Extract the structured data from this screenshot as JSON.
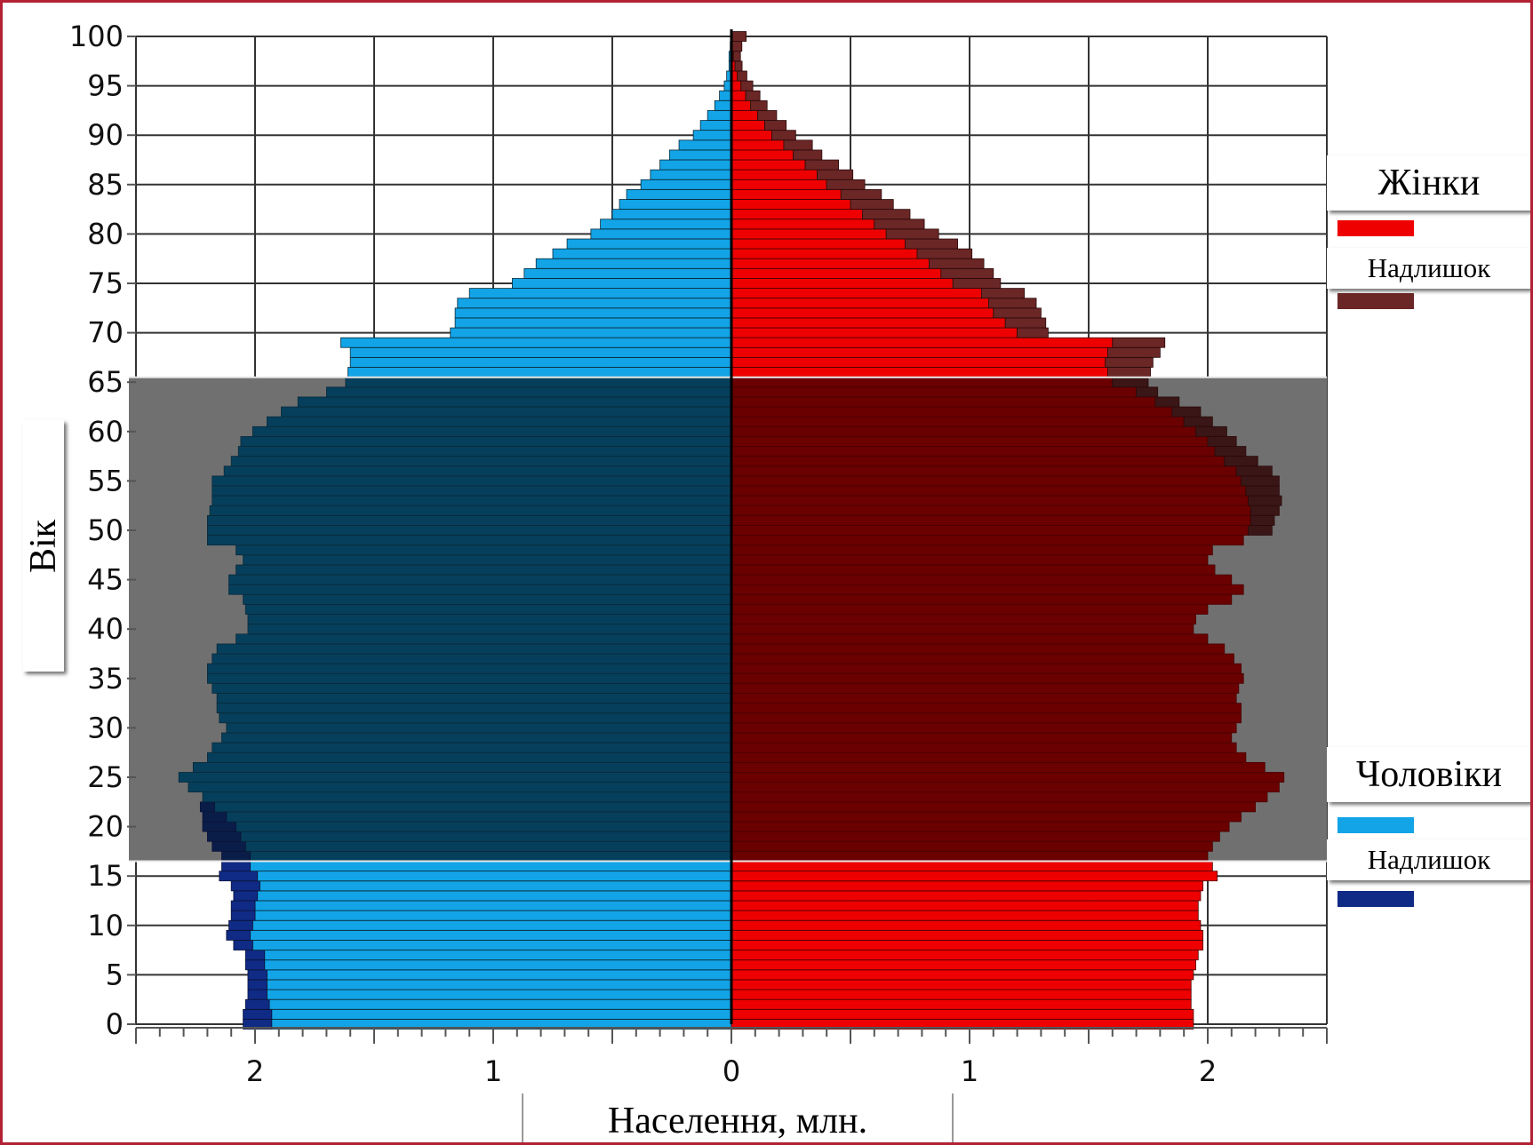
{
  "chart_data": {
    "type": "bar",
    "orientation": "horizontal",
    "subtype": "population-pyramid",
    "xlabel": "Населення, млн.",
    "ylabel": "Вік",
    "xlim": [
      -2.5,
      2.5
    ],
    "ylim": [
      0,
      100
    ],
    "x_ticks": [
      -2,
      -1,
      0,
      1,
      2
    ],
    "x_tick_labels": [
      "2",
      "1",
      "0",
      "1",
      "2"
    ],
    "y_ticks": [
      0,
      5,
      10,
      15,
      20,
      25,
      30,
      35,
      40,
      45,
      50,
      55,
      60,
      65,
      70,
      75,
      80,
      85,
      90,
      95,
      100
    ],
    "y_tick_labels": [
      "0",
      "5",
      "10",
      "15",
      "20",
      "25",
      "30",
      "35",
      "40",
      "45",
      "50",
      "55",
      "60",
      "65",
      "70",
      "75",
      "80",
      "85",
      "90",
      "95",
      "100"
    ],
    "grid": true,
    "highlight_band": {
      "from_age": 17,
      "to_age": 65
    },
    "ages": [
      0,
      1,
      2,
      3,
      4,
      5,
      6,
      7,
      8,
      9,
      10,
      11,
      12,
      13,
      14,
      15,
      16,
      17,
      18,
      19,
      20,
      21,
      22,
      23,
      24,
      25,
      26,
      27,
      28,
      29,
      30,
      31,
      32,
      33,
      34,
      35,
      36,
      37,
      38,
      39,
      40,
      41,
      42,
      43,
      44,
      45,
      46,
      47,
      48,
      49,
      50,
      51,
      52,
      53,
      54,
      55,
      56,
      57,
      58,
      59,
      60,
      61,
      62,
      63,
      64,
      65,
      66,
      67,
      68,
      69,
      70,
      71,
      72,
      73,
      74,
      75,
      76,
      77,
      78,
      79,
      80,
      81,
      82,
      83,
      84,
      85,
      86,
      87,
      88,
      89,
      90,
      91,
      92,
      93,
      94,
      95,
      96,
      97,
      98,
      99,
      100
    ],
    "series": [
      {
        "name": "Чоловіки",
        "side": "left",
        "values": [
          1.93,
          1.93,
          1.94,
          1.95,
          1.95,
          1.95,
          1.96,
          1.96,
          2.01,
          2.02,
          2.01,
          2.0,
          2.0,
          1.99,
          1.98,
          1.99,
          2.02,
          2.02,
          2.04,
          2.06,
          2.08,
          2.12,
          2.17,
          2.22,
          2.28,
          2.32,
          2.26,
          2.2,
          2.18,
          2.14,
          2.12,
          2.15,
          2.16,
          2.16,
          2.18,
          2.2,
          2.2,
          2.18,
          2.16,
          2.08,
          2.03,
          2.03,
          2.04,
          2.05,
          2.11,
          2.11,
          2.08,
          2.05,
          2.08,
          2.2,
          2.2,
          2.2,
          2.19,
          2.18,
          2.18,
          2.18,
          2.13,
          2.1,
          2.07,
          2.06,
          2.01,
          1.95,
          1.89,
          1.82,
          1.7,
          1.62,
          1.61,
          1.6,
          1.6,
          1.64,
          1.18,
          1.16,
          1.16,
          1.15,
          1.1,
          0.92,
          0.87,
          0.82,
          0.75,
          0.69,
          0.59,
          0.55,
          0.5,
          0.47,
          0.44,
          0.38,
          0.34,
          0.3,
          0.26,
          0.22,
          0.16,
          0.13,
          0.1,
          0.07,
          0.05,
          0.03,
          0.02,
          0.01,
          0.01,
          0.005,
          0.002
        ]
      },
      {
        "name": "Надлишок",
        "side": "left",
        "values": [
          0.12,
          0.12,
          0.1,
          0.08,
          0.08,
          0.08,
          0.08,
          0.08,
          0.08,
          0.1,
          0.1,
          0.1,
          0.1,
          0.1,
          0.12,
          0.16,
          0.12,
          0.12,
          0.14,
          0.14,
          0.14,
          0.1,
          0.06,
          0.0,
          0.0,
          0.0,
          0.0,
          0.0,
          0.0,
          0.0,
          0.0,
          0.0,
          0.0,
          0.0,
          0.0,
          0.0,
          0.0,
          0.0,
          0.0,
          0.0,
          0.0,
          0.0,
          0.0,
          0.0,
          0.0,
          0.0,
          0.0,
          0.0,
          0.0,
          0.0,
          0.0,
          0.0,
          0.0,
          0.0,
          0.0,
          0.0,
          0.0,
          0.0,
          0.0,
          0.0,
          0.0,
          0.0,
          0.0,
          0.0,
          0.0,
          0.0,
          0.0,
          0.0,
          0.0,
          0.0,
          0.0,
          0.0,
          0.0,
          0.0,
          0.0,
          0.0,
          0.0,
          0.0,
          0.0,
          0.0,
          0.0,
          0.0,
          0.0,
          0.0,
          0.0,
          0.0,
          0.0,
          0.0,
          0.0,
          0.0,
          0.0,
          0.0,
          0.0,
          0.0,
          0.0,
          0.0,
          0.0,
          0.0,
          0.0,
          0.0,
          0.0
        ]
      },
      {
        "name": "Жінки",
        "side": "right",
        "values": [
          1.94,
          1.94,
          1.93,
          1.93,
          1.93,
          1.94,
          1.95,
          1.96,
          1.98,
          1.98,
          1.97,
          1.96,
          1.96,
          1.97,
          1.98,
          2.04,
          2.02,
          2.0,
          2.02,
          2.05,
          2.09,
          2.14,
          2.2,
          2.25,
          2.3,
          2.32,
          2.24,
          2.16,
          2.12,
          2.1,
          2.12,
          2.14,
          2.14,
          2.12,
          2.13,
          2.15,
          2.14,
          2.11,
          2.07,
          2.0,
          1.94,
          1.95,
          2.0,
          2.1,
          2.15,
          2.1,
          2.03,
          2.0,
          2.02,
          2.15,
          2.17,
          2.18,
          2.18,
          2.17,
          2.16,
          2.14,
          2.12,
          2.07,
          2.03,
          2.0,
          1.95,
          1.9,
          1.85,
          1.78,
          1.7,
          1.6,
          1.58,
          1.57,
          1.58,
          1.6,
          1.2,
          1.15,
          1.1,
          1.08,
          1.05,
          0.93,
          0.88,
          0.83,
          0.78,
          0.73,
          0.65,
          0.6,
          0.55,
          0.5,
          0.46,
          0.4,
          0.36,
          0.31,
          0.26,
          0.22,
          0.17,
          0.14,
          0.11,
          0.08,
          0.06,
          0.04,
          0.025,
          0.015,
          0.008,
          0.004,
          0.002
        ]
      },
      {
        "name": "Надлишок",
        "side": "right",
        "values": [
          0,
          0,
          0,
          0,
          0,
          0,
          0,
          0,
          0,
          0,
          0,
          0,
          0,
          0,
          0,
          0,
          0,
          0,
          0,
          0,
          0,
          0,
          0,
          0,
          0,
          0,
          0,
          0,
          0,
          0,
          0,
          0,
          0,
          0,
          0,
          0,
          0,
          0,
          0,
          0,
          0,
          0,
          0,
          0,
          0,
          0,
          0,
          0,
          0,
          0,
          0.1,
          0.1,
          0.12,
          0.14,
          0.14,
          0.16,
          0.15,
          0.14,
          0.13,
          0.12,
          0.13,
          0.12,
          0.12,
          0.1,
          0.09,
          0.15,
          0.18,
          0.2,
          0.22,
          0.22,
          0.13,
          0.17,
          0.2,
          0.2,
          0.18,
          0.2,
          0.22,
          0.23,
          0.23,
          0.22,
          0.22,
          0.21,
          0.2,
          0.18,
          0.17,
          0.16,
          0.15,
          0.14,
          0.12,
          0.12,
          0.1,
          0.09,
          0.08,
          0.07,
          0.06,
          0.05,
          0.04,
          0.03,
          0.03,
          0.04,
          0.06
        ]
      }
    ],
    "legend": {
      "placement": "right",
      "groups": [
        {
          "title": "Жінки",
          "color": "#ee0000",
          "excess_label": "Надлишок",
          "excess_color": "#6b2626"
        },
        {
          "title": "Чоловіки",
          "color": "#12a4e6",
          "excess_label": "Надлишок",
          "excess_color": "#102b85"
        }
      ]
    },
    "colors": {
      "female": "#ee0000",
      "female_excess": "#6b2626",
      "male": "#12a4e6",
      "male_excess": "#102b85",
      "female_band": "#6a0000",
      "female_excess_band": "#3a1616",
      "male_band": "#063f5b",
      "male_excess_band": "#0a1d48",
      "band_background": "#707070",
      "frame": "#b32035"
    }
  }
}
